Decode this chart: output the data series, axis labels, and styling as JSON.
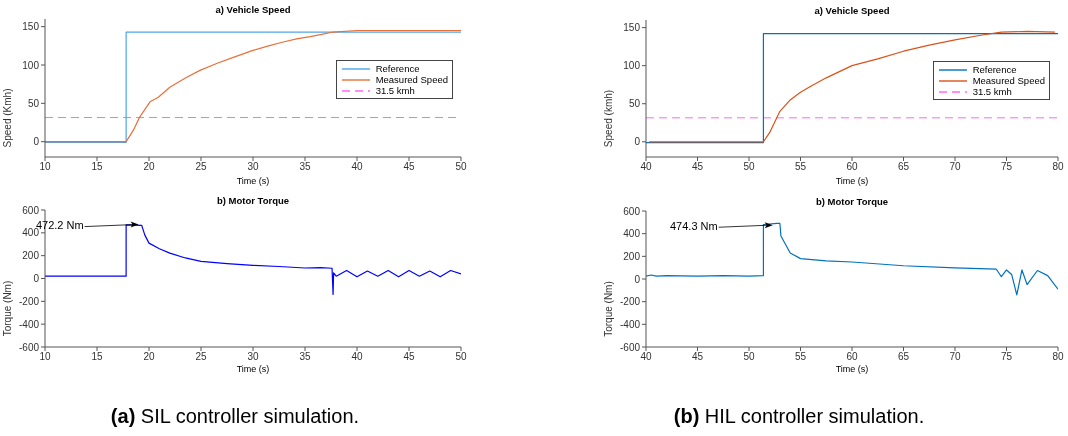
{
  "chart_data": [
    {
      "type": "line",
      "title": "a) Vehicle Speed",
      "xlabel": "Time (s)",
      "ylabel": "Speed (Kmh)",
      "xlim": [
        10,
        50
      ],
      "xticks": [
        10,
        15,
        20,
        25,
        30,
        35,
        40,
        45,
        50
      ],
      "ylim": [
        -20,
        160
      ],
      "yticks": [
        0,
        50,
        100,
        150
      ],
      "legend": "right",
      "series": [
        {
          "name": "Reference",
          "color": "#4da6e8",
          "x": [
            10,
            17.8,
            17.8,
            50
          ],
          "values": [
            -1,
            -1,
            143,
            143
          ]
        },
        {
          "name": "Measured Speed",
          "color": "#e8703a",
          "x": [
            10,
            17.8,
            18.5,
            19.1,
            20.1,
            20.9,
            22,
            23.5,
            24.9,
            26.5,
            28.1,
            30,
            31.5,
            32.9,
            34.2,
            35.5,
            36.6,
            37.7,
            40,
            45,
            50
          ],
          "values": [
            0,
            0,
            15,
            32,
            52,
            58,
            71,
            83,
            93,
            102,
            110,
            119,
            125,
            130,
            134,
            137,
            140,
            143,
            145,
            145,
            145
          ]
        }
      ],
      "ref_lines": [
        {
          "axis": "y",
          "value": 31.5,
          "label": "31.5 kmh",
          "color": "#ff66ff",
          "line_style": "dashed"
        }
      ]
    },
    {
      "type": "line",
      "title": "a) Vehicle Speed",
      "xlabel": "Time (s)",
      "ylabel": "Speed (kmh)",
      "xlim": [
        40,
        80
      ],
      "xticks": [
        40,
        45,
        50,
        55,
        60,
        65,
        70,
        75,
        80
      ],
      "ylim": [
        -20,
        160
      ],
      "yticks": [
        0,
        50,
        100,
        150
      ],
      "legend": "right",
      "series": [
        {
          "name": "Reference",
          "color": "#0072bd",
          "x": [
            40,
            51.4,
            51.4,
            80
          ],
          "values": [
            -1,
            -1,
            142,
            142
          ]
        },
        {
          "name": "Measured Speed",
          "color": "#d95319",
          "x": [
            40.3,
            51.4,
            52,
            53,
            54,
            55,
            56,
            57.5,
            60,
            62.5,
            65,
            67.5,
            70,
            72.5,
            74.5,
            77,
            79.7
          ],
          "values": [
            0,
            0,
            12,
            40,
            55,
            65,
            73,
            84,
            100,
            109,
            119,
            127,
            134,
            140,
            144,
            145,
            144
          ]
        }
      ],
      "ref_lines": [
        {
          "axis": "y",
          "value": 31.5,
          "label": "31.5 kmh",
          "color": "#ff66ff",
          "line_style": "dashed"
        }
      ]
    },
    {
      "type": "line",
      "title": "b) Motor Torque",
      "xlabel": "Time (s)",
      "ylabel": "Torque (Nm)",
      "xlim": [
        10,
        50
      ],
      "xticks": [
        10,
        15,
        20,
        25,
        30,
        35,
        40,
        45,
        50
      ],
      "ylim": [
        -600,
        600
      ],
      "yticks": [
        -600,
        -400,
        -200,
        0,
        200,
        400,
        600
      ],
      "series": [
        {
          "color": "#0000ff",
          "x": [
            10,
            17.8,
            17.8,
            19.3,
            19.6,
            20,
            21,
            22,
            23.5,
            25,
            27.5,
            30,
            32.5,
            35,
            36.5,
            37.6,
            37.7,
            37.75,
            38,
            39,
            40,
            41,
            42,
            43,
            44,
            45,
            46,
            47,
            48,
            49,
            50
          ],
          "values": [
            20,
            20,
            470,
            465,
            380,
            310,
            260,
            222,
            180,
            150,
            130,
            115,
            105,
            92,
            95,
            90,
            -140,
            50,
            20,
            70,
            15,
            65,
            20,
            70,
            15,
            70,
            20,
            65,
            15,
            70,
            40
          ]
        }
      ],
      "annotations": [
        {
          "text": "472.2 Nm",
          "x": 19,
          "y": 472.2
        },
        "(a) SIL controller simulation."
      ]
    },
    {
      "type": "line",
      "title": "b) Motor Torque",
      "xlabel": "Time (s)",
      "ylabel": "Torque (Nm)",
      "xlim": [
        40,
        80
      ],
      "xticks": [
        40,
        45,
        50,
        55,
        60,
        65,
        70,
        75,
        80
      ],
      "ylim": [
        -600,
        600
      ],
      "yticks": [
        -600,
        -400,
        -200,
        0,
        200,
        400,
        600
      ],
      "series": [
        {
          "color": "#0072bd",
          "x": [
            40,
            40.5,
            41,
            42,
            45,
            47.5,
            50,
            51.4,
            51.4,
            52.7,
            53,
            53.1,
            54,
            55,
            57.5,
            60,
            65,
            70,
            74,
            74.5,
            75,
            75.5,
            76,
            76.5,
            77,
            78,
            79,
            80
          ],
          "values": [
            25,
            35,
            25,
            30,
            25,
            30,
            25,
            30,
            480,
            490,
            490,
            380,
            230,
            180,
            160,
            150,
            117,
            99,
            88,
            20,
            80,
            40,
            -140,
            80,
            -50,
            75,
            30,
            -90
          ]
        }
      ],
      "annotations": [
        {
          "text": "474.3 Nm",
          "x": 52.3,
          "y": 474.3
        },
        "(b) HIL controller simulation."
      ]
    }
  ]
}
